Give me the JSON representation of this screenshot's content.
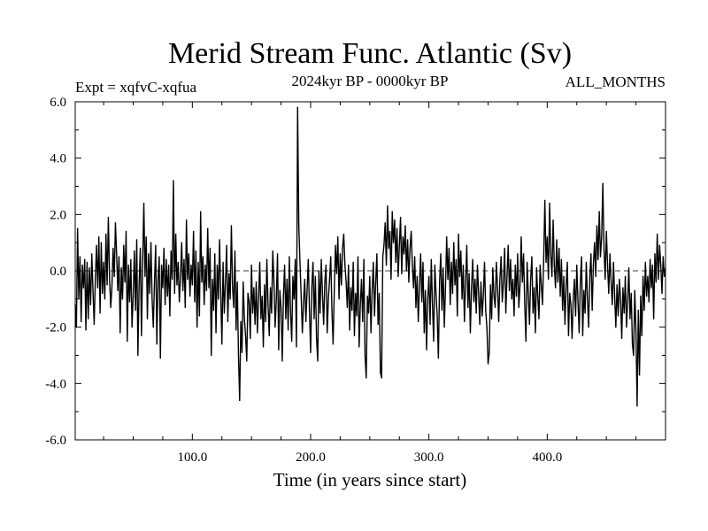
{
  "chart_data": {
    "type": "line",
    "title": "Merid Stream Func. Atlantic (Sv)",
    "subtitle_left": "Expt = xqfvC-xqfua",
    "subtitle_center": "2024kyr BP - 0000kyr BP",
    "subtitle_right": "ALL_MONTHS",
    "xlabel": "Time (in years since start)",
    "ylabel": "",
    "xlim": [
      1,
      500
    ],
    "ylim": [
      -6.0,
      6.0
    ],
    "xticks": [
      100,
      200,
      300,
      400
    ],
    "xtick_labels": [
      "100.0",
      "200.0",
      "300.0",
      "400.0"
    ],
    "yticks": [
      -6,
      -4,
      -2,
      0,
      2,
      4,
      6
    ],
    "ytick_labels": [
      "-6.0",
      "-4.0",
      "-2.0",
      "0.0",
      "2.0",
      "4.0",
      "6.0"
    ],
    "zero_line": "dashed",
    "grid": false,
    "series": [
      {
        "values": [
          -1.2,
          -2.0,
          1.5,
          -1.0,
          0.5,
          -1.8,
          0.2,
          -0.6,
          0.4,
          -2.1,
          0.3,
          -1.7,
          0.1,
          -1.2,
          0.6,
          -0.7,
          -1.9,
          -0.3,
          0.9,
          -0.6,
          1.2,
          -1.5,
          1.0,
          -0.8,
          0.3,
          -1.0,
          1.3,
          -0.5,
          1.9,
          -0.2,
          -1.3,
          -0.6,
          0.8,
          -0.2,
          1.7,
          0.6,
          -0.7,
          0.5,
          -2.2,
          0.1,
          -1.0,
          0.9,
          -0.4,
          1.4,
          -2.5,
          0.2,
          -1.1,
          0.4,
          -2.0,
          -0.9,
          0.7,
          -1.4,
          1.1,
          -3.0,
          -0.5,
          0.8,
          -2.3,
          0.3,
          2.4,
          -0.2,
          1.2,
          -1.7,
          0.6,
          -0.8,
          1.0,
          -1.0,
          -2.0,
          -0.4,
          0.9,
          -2.6,
          -0.3,
          0.5,
          -3.1,
          0.2,
          -0.6,
          0.8,
          -1.2,
          0.4,
          -0.9,
          0.2,
          -1.6,
          0.7,
          -0.3,
          3.2,
          -0.8,
          1.3,
          -0.5,
          0.3,
          -1.1,
          -0.2,
          1.0,
          -0.7,
          0.4,
          -1.3,
          1.8,
          -0.3,
          0.6,
          -0.9,
          0.2,
          -0.5,
          1.4,
          -1.1,
          0.7,
          -2.0,
          0.3,
          -1.6,
          2.1,
          -0.4,
          0.5,
          -1.2,
          0.2,
          -0.7,
          1.5,
          -0.6,
          0.8,
          -3.0,
          -0.3,
          -1.4,
          0.6,
          -2.2,
          0.2,
          -1.0,
          1.1,
          -0.8,
          -2.6,
          0.3,
          -1.5,
          -0.4,
          0.9,
          -1.8,
          -0.1,
          -1.0,
          1.6,
          -0.6,
          -1.3,
          0.7,
          -2.1,
          -0.4,
          -3.0,
          -4.6,
          -1.8,
          -2.9,
          -0.4,
          -1.7,
          -2.3,
          -3.2,
          -0.8,
          -1.1,
          -2.4,
          0.2,
          -1.5,
          -0.6,
          -1.9,
          -0.4,
          -2.2,
          -1.0,
          0.3,
          -1.7,
          -0.9,
          -2.7,
          -0.5,
          -1.8,
          0.4,
          -1.2,
          -2.3,
          -0.6,
          -1.5,
          0.7,
          -0.4,
          -2.0,
          -1.0,
          0.6,
          -2.8,
          -0.7,
          -1.3,
          -3.2,
          -0.9,
          0.2,
          -1.7,
          -0.3,
          -2.1,
          0.5,
          -1.4,
          -2.5,
          -0.2,
          -1.0,
          0.4,
          -2.7,
          5.8,
          1.6,
          0.3,
          -0.9,
          -2.2,
          -1.1,
          -0.3,
          -1.8,
          -0.7,
          0.4,
          -1.4,
          -2.9,
          -0.6,
          0.3,
          -1.7,
          -0.2,
          -2.4,
          -3.2,
          0.0,
          -1.5,
          0.4,
          -0.8,
          -1.9,
          -0.4,
          0.2,
          -2.2,
          -1.0,
          -0.3,
          0.5,
          -1.4,
          -2.6,
          -0.7,
          0.9,
          -0.1,
          1.2,
          -1.0,
          0.6,
          -0.5,
          0.8,
          1.3,
          0.2,
          -0.4,
          -1.3,
          0.2,
          -2.1,
          -0.6,
          -1.4,
          0.3,
          -2.3,
          -0.8,
          -1.6,
          0.5,
          -2.7,
          -1.2,
          -0.3,
          -1.8,
          0.4,
          -3.0,
          -3.8,
          -0.9,
          -1.5,
          -0.2,
          -2.2,
          -0.7,
          0.3,
          -1.6,
          -0.4,
          0.6,
          -1.9,
          -0.8,
          -3.6,
          -3.8,
          0.5,
          0.9,
          1.7,
          0.2,
          2.3,
          0.8,
          1.4,
          -0.3,
          2.1,
          1.0,
          1.8,
          0.3,
          1.5,
          -0.2,
          0.9,
          1.9,
          -0.1,
          1.2,
          0.6,
          1.6,
          0.0,
          1.1,
          -0.4,
          0.8,
          1.4,
          0.2,
          -0.6,
          0.5,
          -1.3,
          -0.2,
          -1.8,
          -0.5,
          0.6,
          -1.1,
          0.3,
          -2.2,
          -0.7,
          -2.8,
          -1.0,
          -0.2,
          -1.9,
          0.4,
          -1.2,
          -2.5,
          0.2,
          -0.8,
          -1.6,
          -3.1,
          -0.4,
          0.6,
          -1.4,
          0.1,
          -2.0,
          -0.6,
          1.2,
          -0.3,
          0.8,
          -1.2,
          0.3,
          -0.8,
          1.0,
          -0.5,
          0.4,
          -1.6,
          1.3,
          -0.2,
          0.7,
          -1.0,
          0.2,
          -1.8,
          -0.4,
          0.9,
          -1.3,
          -0.1,
          -2.2,
          -0.6,
          0.4,
          -1.1,
          -0.3,
          -1.5,
          0.2,
          -0.8,
          -1.9,
          -0.4,
          -1.6,
          -0.9,
          0.3,
          -1.4,
          -2.0,
          -3.3,
          -2.9,
          -0.5,
          -1.7,
          0.1,
          -0.9,
          -1.3,
          0.3,
          -0.6,
          -1.8,
          -0.3,
          0.5,
          -1.1,
          -0.4,
          0.8,
          -1.5,
          -0.2,
          0.9,
          -0.7,
          0.4,
          -1.0,
          -0.3,
          -1.6,
          0.2,
          -0.9,
          0.6,
          -1.3,
          -0.5,
          1.2,
          -0.4,
          0.6,
          -1.2,
          -2.5,
          0.3,
          -0.8,
          -1.9,
          -0.3,
          0.5,
          -1.5,
          -0.6,
          -2.2,
          0.1,
          -0.9,
          -1.7,
          0.2,
          -0.5,
          -1.2,
          0.4,
          2.5,
          0.3,
          1.2,
          -0.3,
          2.4,
          0.6,
          -0.2,
          1.8,
          0.2,
          -0.6,
          1.1,
          -0.4,
          0.8,
          -0.9,
          0.4,
          -1.4,
          -0.2,
          -1.9,
          -0.5,
          0.3,
          -2.3,
          -0.8,
          -1.2,
          -2.4,
          -1.0,
          -0.3,
          -1.6,
          0.2,
          -1.1,
          -2.2,
          -0.4,
          0.5,
          -2.3,
          -0.7,
          -1.5,
          0.3,
          -1.0,
          -2.0,
          -0.2,
          0.6,
          -1.4,
          0.2,
          1.0,
          -0.2,
          1.6,
          0.4,
          2.1,
          0.5,
          1.2,
          3.1,
          0.8,
          -0.3,
          1.4,
          0.2,
          -0.8,
          0.6,
          -0.4,
          -1.2,
          0.3,
          -0.9,
          -2.0,
          -0.5,
          -1.6,
          -0.3,
          -1.0,
          -2.4,
          -0.6,
          -1.5,
          -0.2,
          -2.0,
          -1.1,
          0.1,
          -1.7,
          -0.8,
          -2.6,
          -3.0,
          -0.7,
          -2.1,
          -4.8,
          -1.4,
          -3.7,
          -0.9,
          -2.3,
          -0.2,
          -1.4,
          0.3,
          -0.9,
          -0.2,
          -1.1,
          0.4,
          -0.6,
          0.2,
          -1.7,
          0.6,
          -0.4,
          1.3,
          -0.3,
          0.9,
          0.2,
          -0.8,
          0.5,
          -0.2,
          0.1
        ]
      }
    ]
  }
}
